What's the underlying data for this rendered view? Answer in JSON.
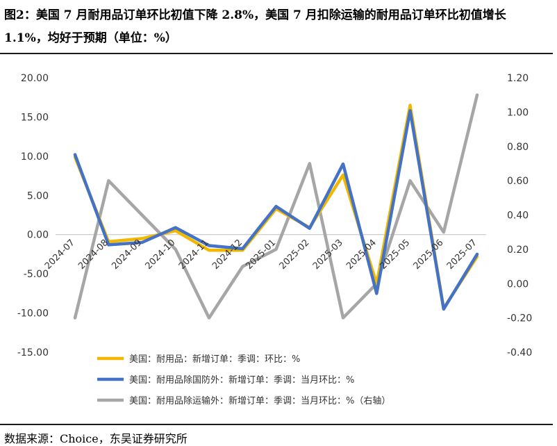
{
  "figure": {
    "title": "图2：美国 7 月耐用品订单环比初值下降 2.8%，美国 7 月扣除运输的耐用品订单环比初值增长 1.1%，均好于预期（单位：%）",
    "source": "数据来源：Choice，东吴证券研究所"
  },
  "chart_data": {
    "type": "line",
    "categories": [
      "2024-07",
      "2024-08",
      "2024-09",
      "2024-10",
      "2024-11",
      "2024-12",
      "2025-01",
      "2025-02",
      "2025-03",
      "2025-04",
      "2025-05",
      "2025-06",
      "2025-07"
    ],
    "left_axis": {
      "min": -15,
      "max": 20,
      "ticks": [
        "20.00",
        "15.00",
        "10.00",
        "5.00",
        "0.00",
        "-5.00",
        "-10.00",
        "-15.00"
      ]
    },
    "right_axis": {
      "min": -0.4,
      "max": 1.2,
      "ticks": [
        "1.20",
        "1.00",
        "0.80",
        "0.60",
        "0.40",
        "0.20",
        "0.00",
        "-0.20",
        "-0.40"
      ]
    },
    "series": [
      {
        "name": "美国：耐用品：新增订单：季调：环比：%",
        "axis": "left",
        "color": "#f2b800",
        "values": [
          9.9,
          -0.9,
          -0.5,
          0.5,
          -2.0,
          -2.0,
          3.3,
          0.9,
          7.6,
          -6.3,
          16.5,
          -9.4,
          -2.8
        ]
      },
      {
        "name": "美国：耐用品除国防外：新增订单：季调：当月环比：%",
        "axis": "left",
        "color": "#4472c4",
        "values": [
          10.2,
          -1.3,
          -1.0,
          0.9,
          -1.4,
          -1.8,
          3.6,
          0.8,
          9.0,
          -7.5,
          15.8,
          -9.5,
          -2.5
        ]
      },
      {
        "name": "美国：耐用品除运输外：新增订单：季调：当月环比：%（右轴）",
        "axis": "right",
        "color": "#a6a6a6",
        "values": [
          -0.2,
          0.6,
          0.4,
          0.2,
          -0.2,
          0.1,
          0.2,
          0.7,
          -0.2,
          0.0,
          0.6,
          0.3,
          1.1
        ]
      }
    ]
  }
}
